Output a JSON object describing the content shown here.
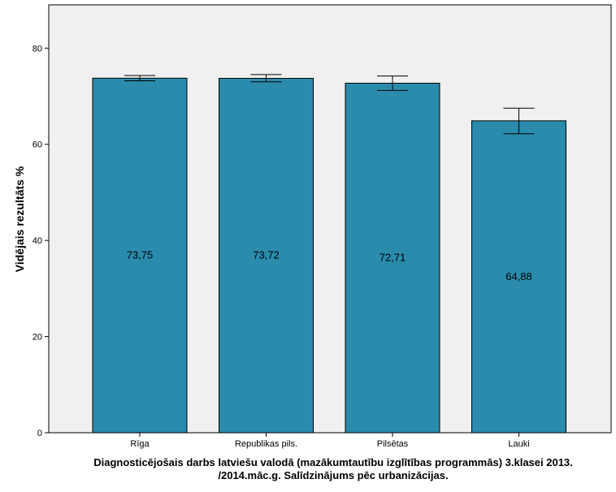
{
  "chart_data": {
    "type": "bar",
    "categories": [
      "Rīga",
      "Republikas pils.",
      "Pilsētas",
      "Lauki"
    ],
    "values": [
      73.75,
      73.72,
      72.71,
      64.88
    ],
    "value_labels": [
      "73,75",
      "73,72",
      "72,71",
      "64,88"
    ],
    "error_bars": [
      {
        "low": 73.2,
        "high": 74.3
      },
      {
        "low": 73.0,
        "high": 74.5
      },
      {
        "low": 71.2,
        "high": 74.2
      },
      {
        "low": 62.2,
        "high": 67.5
      }
    ],
    "ylabel": "Vidējais rezultāts %",
    "xlabel": "",
    "ylim": [
      0,
      89
    ],
    "yticks": [
      0,
      20,
      40,
      60,
      80
    ],
    "grid": false,
    "bar_color": "#2a8bad",
    "plot_background": "#f0f0f0"
  },
  "caption": {
    "line1": "Diagnosticējošais darbs latviešu valodā (mazākumtautību izglītības programmās) 3.klasei 2013.",
    "line2": "/2014.māc.g. Salīdzinājums pēc urbanizācijas."
  }
}
